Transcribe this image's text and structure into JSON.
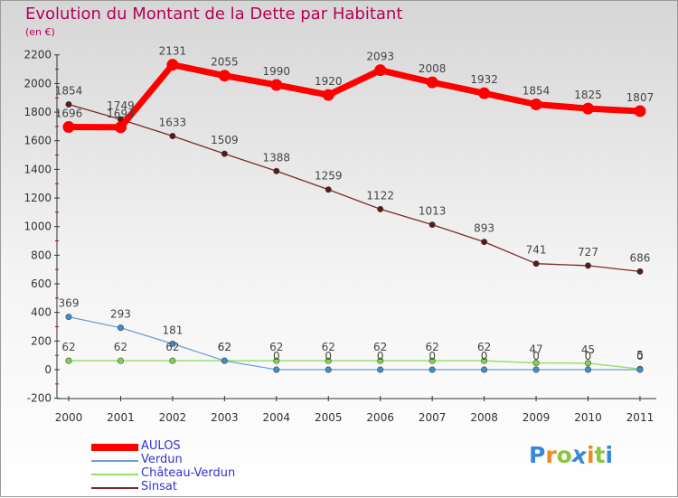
{
  "chart_data": {
    "type": "line",
    "title": "Evolution du Montant de la Dette par Habitant",
    "subtitle": "(en €)",
    "xlabel": "",
    "ylabel": "",
    "x": [
      "2000",
      "2001",
      "2002",
      "2003",
      "2004",
      "2005",
      "2006",
      "2007",
      "2008",
      "2009",
      "2010",
      "2011"
    ],
    "ylim": [
      -200,
      2200
    ],
    "yticks": [
      "-200",
      "0",
      "200",
      "400",
      "600",
      "800",
      "1000",
      "1200",
      "1400",
      "1600",
      "1800",
      "2000",
      "2200"
    ],
    "grid": false,
    "legend_position": "bottom-left",
    "series": [
      {
        "name": "AULOS",
        "color": "#ff0000",
        "values": [
          1696,
          1694,
          2131,
          2055,
          1990,
          1920,
          2093,
          2008,
          1932,
          1854,
          1825,
          1807
        ],
        "labels": [
          "1696",
          "1694",
          "2131",
          "2055",
          "1990",
          "1920",
          "2093",
          "2008",
          "1932",
          "1854",
          "1825",
          "1807"
        ]
      },
      {
        "name": "Verdun",
        "color": "#6a9fd4",
        "values": [
          369,
          293,
          181,
          62,
          0,
          0,
          0,
          0,
          0,
          0,
          0,
          0
        ],
        "labels": [
          "369",
          "293",
          "181",
          "62",
          "0",
          "0",
          "0",
          "0",
          "0",
          "0",
          "0",
          "0"
        ]
      },
      {
        "name": "Château-Verdun",
        "color": "#99e06b",
        "values": [
          62,
          62,
          62,
          62,
          62,
          62,
          62,
          62,
          62,
          47,
          45,
          5
        ],
        "labels": [
          "62",
          "62",
          "62",
          "62",
          "62",
          "62",
          "62",
          "62",
          "62",
          "47",
          "45",
          "5"
        ]
      },
      {
        "name": "Sinsat",
        "color": "#7a2a2a",
        "values": [
          1854,
          1749,
          1633,
          1509,
          1388,
          1259,
          1122,
          1013,
          893,
          741,
          727,
          686
        ],
        "labels": [
          "1854",
          "1749",
          "1633",
          "1509",
          "1388",
          "1259",
          "1122",
          "1013",
          "893",
          "741",
          "727",
          "686"
        ]
      }
    ]
  },
  "logo": {
    "letters": [
      "P",
      "r",
      "o",
      "x",
      "i",
      "t",
      "i"
    ],
    "colors": [
      "#3a86d8",
      "#f08a1e",
      "#8cc63f",
      "#3a86d8",
      "#f08a1e",
      "#8cc63f",
      "#3a86d8"
    ]
  }
}
